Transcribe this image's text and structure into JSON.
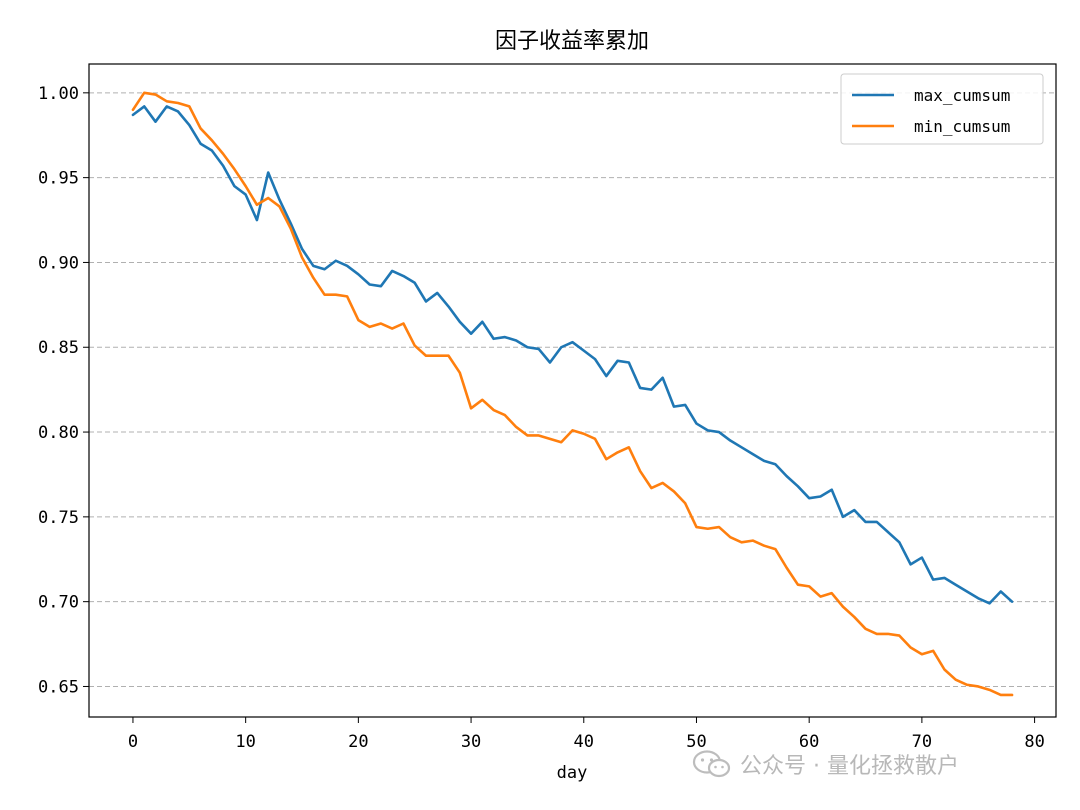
{
  "chart_data": {
    "type": "line",
    "title": "因子收益率累加",
    "xlabel": "day",
    "ylabel": "",
    "xlim": [
      -3.9,
      81.9
    ],
    "ylim": [
      0.632,
      1.017
    ],
    "xticks": [
      0,
      10,
      20,
      30,
      40,
      50,
      60,
      70,
      80
    ],
    "yticks": [
      0.65,
      0.7,
      0.75,
      0.8,
      0.85,
      0.9,
      0.95,
      1.0
    ],
    "ytick_labels": [
      "0.65",
      "0.70",
      "0.75",
      "0.80",
      "0.85",
      "0.90",
      "0.95",
      "1.00"
    ],
    "grid": "y-dashed",
    "legend_position": "top-right",
    "series": [
      {
        "name": "max_cumsum",
        "color": "#1f77b4",
        "values": [
          0.987,
          0.992,
          0.983,
          0.992,
          0.989,
          0.981,
          0.97,
          0.966,
          0.957,
          0.945,
          0.94,
          0.925,
          0.953,
          0.937,
          0.923,
          0.908,
          0.898,
          0.896,
          0.901,
          0.898,
          0.893,
          0.887,
          0.886,
          0.895,
          0.892,
          0.888,
          0.877,
          0.882,
          0.874,
          0.865,
          0.858,
          0.865,
          0.855,
          0.856,
          0.854,
          0.85,
          0.849,
          0.841,
          0.85,
          0.853,
          0.848,
          0.843,
          0.833,
          0.842,
          0.841,
          0.826,
          0.825,
          0.832,
          0.815,
          0.816,
          0.805,
          0.801,
          0.8,
          0.795,
          0.791,
          0.787,
          0.783,
          0.781,
          0.774,
          0.768,
          0.761,
          0.762,
          0.766,
          0.75,
          0.754,
          0.747,
          0.747,
          0.741,
          0.735,
          0.722,
          0.726,
          0.713,
          0.714,
          0.71,
          0.706,
          0.702,
          0.699,
          0.706,
          0.7
        ]
      },
      {
        "name": "min_cumsum",
        "color": "#ff7f0e",
        "values": [
          0.99,
          1.0,
          0.999,
          0.995,
          0.994,
          0.992,
          0.979,
          0.972,
          0.964,
          0.955,
          0.945,
          0.934,
          0.938,
          0.933,
          0.92,
          0.903,
          0.891,
          0.881,
          0.881,
          0.88,
          0.866,
          0.862,
          0.864,
          0.861,
          0.864,
          0.851,
          0.845,
          0.845,
          0.845,
          0.835,
          0.814,
          0.819,
          0.813,
          0.81,
          0.803,
          0.798,
          0.798,
          0.796,
          0.794,
          0.801,
          0.799,
          0.796,
          0.784,
          0.788,
          0.791,
          0.777,
          0.767,
          0.77,
          0.765,
          0.758,
          0.744,
          0.743,
          0.744,
          0.738,
          0.735,
          0.736,
          0.733,
          0.731,
          0.72,
          0.71,
          0.709,
          0.703,
          0.705,
          0.697,
          0.691,
          0.684,
          0.681,
          0.681,
          0.68,
          0.673,
          0.669,
          0.671,
          0.66,
          0.654,
          0.651,
          0.65,
          0.648,
          0.645,
          0.645
        ]
      }
    ]
  },
  "watermark": {
    "text": "公众号 · 量化拯救散户",
    "icon": "wechat-icon"
  }
}
